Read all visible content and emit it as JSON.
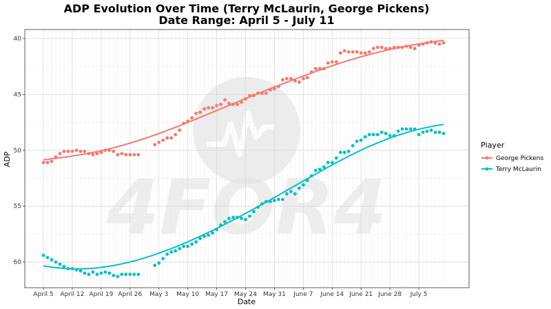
{
  "title_line1": "ADP Evolution Over Time (Terry McLaurin, George Pickens)",
  "title_line2": "Date Range: April  5 - July 11",
  "watermark_text": "4FOR4",
  "chart_data": {
    "type": "scatter",
    "xlabel": "Date",
    "ylabel": "ADP",
    "xlim": [
      0,
      97
    ],
    "ylim": [
      62.3,
      39.2
    ],
    "y_reversed": true,
    "x_ticks": [
      {
        "label": "April  5",
        "x": 0
      },
      {
        "label": "April 12",
        "x": 7
      },
      {
        "label": "April 19",
        "x": 14
      },
      {
        "label": "April 26",
        "x": 21
      },
      {
        "label": "May  3",
        "x": 28
      },
      {
        "label": "May 10",
        "x": 35
      },
      {
        "label": "May 17",
        "x": 42
      },
      {
        "label": "May 24",
        "x": 49
      },
      {
        "label": "May 31",
        "x": 56
      },
      {
        "label": "June  7",
        "x": 63
      },
      {
        "label": "June 14",
        "x": 70
      },
      {
        "label": "June 21",
        "x": 77
      },
      {
        "label": "June 28",
        "x": 84
      },
      {
        "label": "July  5",
        "x": 91
      }
    ],
    "y_ticks": [
      40,
      45,
      50,
      55,
      60
    ],
    "legend": {
      "title": "Player",
      "position": "right"
    },
    "series": [
      {
        "name": "George Pickens",
        "color": "#F8766D",
        "points": [
          [
            0,
            51.1
          ],
          [
            1,
            51.1
          ],
          [
            2,
            51.0
          ],
          [
            3,
            50.6
          ],
          [
            4,
            50.3
          ],
          [
            5,
            50.1
          ],
          [
            6,
            50.1
          ],
          [
            7,
            50.1
          ],
          [
            8,
            50.0
          ],
          [
            9,
            50.1
          ],
          [
            10,
            50.1
          ],
          [
            11,
            50.3
          ],
          [
            12,
            50.4
          ],
          [
            13,
            50.3
          ],
          [
            14,
            50.2
          ],
          [
            15,
            50.0
          ],
          [
            16,
            50.0
          ],
          [
            17,
            50.1
          ],
          [
            18,
            50.4
          ],
          [
            19,
            50.3
          ],
          [
            20,
            50.4
          ],
          [
            21,
            50.4
          ],
          [
            22,
            50.4
          ],
          [
            23,
            50.4
          ],
          [
            27,
            49.5
          ],
          [
            28,
            49.3
          ],
          [
            29,
            49.1
          ],
          [
            30,
            48.9
          ],
          [
            31,
            48.9
          ],
          [
            32,
            48.6
          ],
          [
            33,
            48.2
          ],
          [
            34,
            47.6
          ],
          [
            35,
            47.4
          ],
          [
            36,
            47.1
          ],
          [
            37,
            46.7
          ],
          [
            38,
            46.6
          ],
          [
            39,
            46.3
          ],
          [
            40,
            46.2
          ],
          [
            41,
            46.2
          ],
          [
            42,
            46.0
          ],
          [
            43,
            45.9
          ],
          [
            44,
            45.5
          ],
          [
            45,
            45.8
          ],
          [
            46,
            45.9
          ],
          [
            47,
            45.9
          ],
          [
            48,
            45.7
          ],
          [
            49,
            45.4
          ],
          [
            50,
            45.1
          ],
          [
            51,
            45.1
          ],
          [
            52,
            44.9
          ],
          [
            53,
            44.9
          ],
          [
            54,
            44.9
          ],
          [
            55,
            44.6
          ],
          [
            56,
            44.5
          ],
          [
            57,
            44.3
          ],
          [
            58,
            43.7
          ],
          [
            59,
            43.6
          ],
          [
            60,
            43.6
          ],
          [
            61,
            43.8
          ],
          [
            62,
            43.9
          ],
          [
            63,
            43.6
          ],
          [
            64,
            43.5
          ],
          [
            65,
            43.0
          ],
          [
            66,
            42.7
          ],
          [
            67,
            42.7
          ],
          [
            68,
            42.7
          ],
          [
            69,
            42.2
          ],
          [
            70,
            42.1
          ],
          [
            71,
            42.1
          ],
          [
            72,
            41.3
          ],
          [
            73,
            41.1
          ],
          [
            74,
            41.2
          ],
          [
            75,
            41.2
          ],
          [
            76,
            41.2
          ],
          [
            77,
            41.3
          ],
          [
            78,
            41.3
          ],
          [
            79,
            41.2
          ],
          [
            80,
            40.9
          ],
          [
            81,
            40.8
          ],
          [
            82,
            40.8
          ],
          [
            83,
            40.9
          ],
          [
            84,
            40.9
          ],
          [
            85,
            40.8
          ],
          [
            86,
            40.8
          ],
          [
            87,
            40.8
          ],
          [
            88,
            40.7
          ],
          [
            89,
            40.8
          ],
          [
            90,
            40.9
          ],
          [
            91,
            40.6
          ],
          [
            92,
            40.5
          ],
          [
            93,
            40.4
          ],
          [
            94,
            40.3
          ],
          [
            95,
            40.4
          ],
          [
            96,
            40.5
          ],
          [
            97,
            40.4
          ]
        ]
      },
      {
        "name": "Terry McLaurin",
        "color": "#00BFC4",
        "points": [
          [
            0,
            59.4
          ],
          [
            1,
            59.6
          ],
          [
            2,
            59.8
          ],
          [
            3,
            60.0
          ],
          [
            4,
            60.2
          ],
          [
            5,
            60.4
          ],
          [
            6,
            60.6
          ],
          [
            7,
            60.6
          ],
          [
            8,
            60.7
          ],
          [
            9,
            60.8
          ],
          [
            10,
            61.0
          ],
          [
            11,
            61.1
          ],
          [
            12,
            60.9
          ],
          [
            13,
            61.1
          ],
          [
            14,
            61.0
          ],
          [
            15,
            60.9
          ],
          [
            16,
            61.0
          ],
          [
            17,
            61.2
          ],
          [
            18,
            61.3
          ],
          [
            19,
            61.1
          ],
          [
            20,
            61.1
          ],
          [
            21,
            61.1
          ],
          [
            22,
            61.1
          ],
          [
            23,
            61.1
          ],
          [
            27,
            60.3
          ],
          [
            28,
            60.1
          ],
          [
            29,
            59.7
          ],
          [
            30,
            59.3
          ],
          [
            31,
            59.1
          ],
          [
            32,
            59.0
          ],
          [
            33,
            58.8
          ],
          [
            34,
            58.6
          ],
          [
            35,
            58.6
          ],
          [
            36,
            58.4
          ],
          [
            37,
            58.2
          ],
          [
            38,
            57.9
          ],
          [
            39,
            57.7
          ],
          [
            40,
            57.6
          ],
          [
            41,
            57.4
          ],
          [
            42,
            57.1
          ],
          [
            43,
            56.7
          ],
          [
            44,
            56.4
          ],
          [
            45,
            56.1
          ],
          [
            46,
            56.0
          ],
          [
            47,
            56.0
          ],
          [
            48,
            56.1
          ],
          [
            49,
            56.2
          ],
          [
            50,
            55.9
          ],
          [
            51,
            55.5
          ],
          [
            52,
            55.1
          ],
          [
            53,
            54.8
          ],
          [
            54,
            54.6
          ],
          [
            55,
            54.6
          ],
          [
            56,
            54.5
          ],
          [
            57,
            54.4
          ],
          [
            58,
            54.4
          ],
          [
            59,
            53.9
          ],
          [
            60,
            53.7
          ],
          [
            61,
            53.9
          ],
          [
            62,
            53.4
          ],
          [
            63,
            53.1
          ],
          [
            64,
            52.7
          ],
          [
            65,
            52.3
          ],
          [
            66,
            51.8
          ],
          [
            67,
            51.7
          ],
          [
            68,
            51.5
          ],
          [
            69,
            51.1
          ],
          [
            70,
            51.1
          ],
          [
            71,
            50.7
          ],
          [
            72,
            50.2
          ],
          [
            73,
            50.2
          ],
          [
            74,
            50.1
          ],
          [
            75,
            49.6
          ],
          [
            76,
            49.2
          ],
          [
            77,
            49.1
          ],
          [
            78,
            48.8
          ],
          [
            79,
            48.6
          ],
          [
            80,
            48.6
          ],
          [
            81,
            48.6
          ],
          [
            82,
            48.4
          ],
          [
            83,
            48.5
          ],
          [
            84,
            48.7
          ],
          [
            85,
            48.7
          ],
          [
            86,
            48.3
          ],
          [
            87,
            48.1
          ],
          [
            88,
            48.1
          ],
          [
            89,
            48.1
          ],
          [
            90,
            48.1
          ],
          [
            91,
            48.6
          ],
          [
            92,
            48.4
          ],
          [
            93,
            48.3
          ],
          [
            94,
            48.2
          ],
          [
            95,
            48.4
          ],
          [
            96,
            48.4
          ],
          [
            97,
            48.5
          ]
        ]
      }
    ]
  }
}
